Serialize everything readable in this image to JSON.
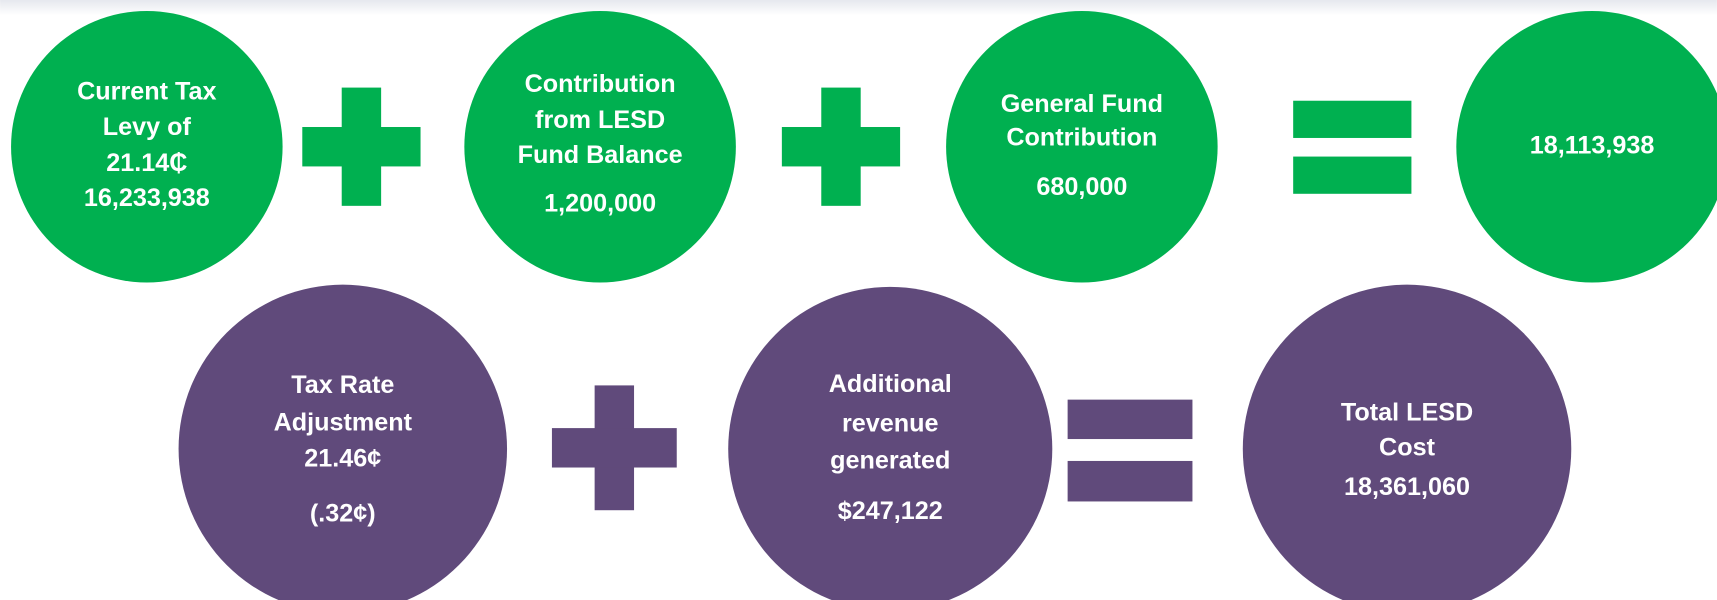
{
  "row1": [
    {
      "lines": [
        "Current Tax",
        "Levy of",
        "21.14₵",
        "16,233,938"
      ]
    },
    {
      "lines": [
        "Contribution",
        "from LESD",
        "Fund Balance",
        "1,200,000"
      ]
    },
    {
      "lines": [
        "General Fund",
        "Contribution",
        "680,000"
      ]
    },
    {
      "lines": [
        "18,113,938"
      ]
    }
  ],
  "row2": [
    {
      "lines": [
        "Tax Rate",
        "Adjustment",
        "21.46¢",
        "(.32¢)"
      ]
    },
    {
      "lines": [
        "Additional",
        "revenue",
        "generated",
        "$247,122"
      ]
    },
    {
      "lines": [
        "Total LESD",
        "Cost",
        "18,361,060"
      ]
    }
  ]
}
